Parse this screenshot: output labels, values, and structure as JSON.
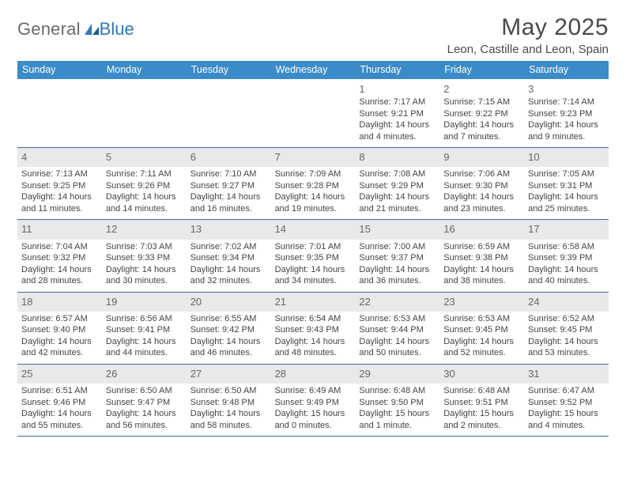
{
  "logo": {
    "general": "General",
    "blue": "Blue"
  },
  "header": {
    "month_title": "May 2025",
    "location": "Leon, Castille and Leon, Spain"
  },
  "colors": {
    "header_bg": "#3b8bc9",
    "header_text": "#ffffff",
    "rule": "#3b6fa2",
    "shade": "#e9e9e9",
    "text": "#444444",
    "logo_gray": "#6a6a6a",
    "logo_blue": "#2f78bb"
  },
  "weekdays": [
    "Sunday",
    "Monday",
    "Tuesday",
    "Wednesday",
    "Thursday",
    "Friday",
    "Saturday"
  ],
  "weeks": [
    [
      {
        "blank": true
      },
      {
        "blank": true
      },
      {
        "blank": true
      },
      {
        "blank": true
      },
      {
        "num": "1",
        "sunrise": "Sunrise: 7:17 AM",
        "sunset": "Sunset: 9:21 PM",
        "daylight": "Daylight: 14 hours and 4 minutes."
      },
      {
        "num": "2",
        "sunrise": "Sunrise: 7:15 AM",
        "sunset": "Sunset: 9:22 PM",
        "daylight": "Daylight: 14 hours and 7 minutes."
      },
      {
        "num": "3",
        "sunrise": "Sunrise: 7:14 AM",
        "sunset": "Sunset: 9:23 PM",
        "daylight": "Daylight: 14 hours and 9 minutes."
      }
    ],
    [
      {
        "num": "4",
        "shaded": true,
        "sunrise": "Sunrise: 7:13 AM",
        "sunset": "Sunset: 9:25 PM",
        "daylight": "Daylight: 14 hours and 11 minutes."
      },
      {
        "num": "5",
        "shaded": true,
        "sunrise": "Sunrise: 7:11 AM",
        "sunset": "Sunset: 9:26 PM",
        "daylight": "Daylight: 14 hours and 14 minutes."
      },
      {
        "num": "6",
        "shaded": true,
        "sunrise": "Sunrise: 7:10 AM",
        "sunset": "Sunset: 9:27 PM",
        "daylight": "Daylight: 14 hours and 16 minutes."
      },
      {
        "num": "7",
        "shaded": true,
        "sunrise": "Sunrise: 7:09 AM",
        "sunset": "Sunset: 9:28 PM",
        "daylight": "Daylight: 14 hours and 19 minutes."
      },
      {
        "num": "8",
        "shaded": true,
        "sunrise": "Sunrise: 7:08 AM",
        "sunset": "Sunset: 9:29 PM",
        "daylight": "Daylight: 14 hours and 21 minutes."
      },
      {
        "num": "9",
        "shaded": true,
        "sunrise": "Sunrise: 7:06 AM",
        "sunset": "Sunset: 9:30 PM",
        "daylight": "Daylight: 14 hours and 23 minutes."
      },
      {
        "num": "10",
        "shaded": true,
        "sunrise": "Sunrise: 7:05 AM",
        "sunset": "Sunset: 9:31 PM",
        "daylight": "Daylight: 14 hours and 25 minutes."
      }
    ],
    [
      {
        "num": "11",
        "shaded": true,
        "sunrise": "Sunrise: 7:04 AM",
        "sunset": "Sunset: 9:32 PM",
        "daylight": "Daylight: 14 hours and 28 minutes."
      },
      {
        "num": "12",
        "shaded": true,
        "sunrise": "Sunrise: 7:03 AM",
        "sunset": "Sunset: 9:33 PM",
        "daylight": "Daylight: 14 hours and 30 minutes."
      },
      {
        "num": "13",
        "shaded": true,
        "sunrise": "Sunrise: 7:02 AM",
        "sunset": "Sunset: 9:34 PM",
        "daylight": "Daylight: 14 hours and 32 minutes."
      },
      {
        "num": "14",
        "shaded": true,
        "sunrise": "Sunrise: 7:01 AM",
        "sunset": "Sunset: 9:35 PM",
        "daylight": "Daylight: 14 hours and 34 minutes."
      },
      {
        "num": "15",
        "shaded": true,
        "sunrise": "Sunrise: 7:00 AM",
        "sunset": "Sunset: 9:37 PM",
        "daylight": "Daylight: 14 hours and 36 minutes."
      },
      {
        "num": "16",
        "shaded": true,
        "sunrise": "Sunrise: 6:59 AM",
        "sunset": "Sunset: 9:38 PM",
        "daylight": "Daylight: 14 hours and 38 minutes."
      },
      {
        "num": "17",
        "shaded": true,
        "sunrise": "Sunrise: 6:58 AM",
        "sunset": "Sunset: 9:39 PM",
        "daylight": "Daylight: 14 hours and 40 minutes."
      }
    ],
    [
      {
        "num": "18",
        "shaded": true,
        "sunrise": "Sunrise: 6:57 AM",
        "sunset": "Sunset: 9:40 PM",
        "daylight": "Daylight: 14 hours and 42 minutes."
      },
      {
        "num": "19",
        "shaded": true,
        "sunrise": "Sunrise: 6:56 AM",
        "sunset": "Sunset: 9:41 PM",
        "daylight": "Daylight: 14 hours and 44 minutes."
      },
      {
        "num": "20",
        "shaded": true,
        "sunrise": "Sunrise: 6:55 AM",
        "sunset": "Sunset: 9:42 PM",
        "daylight": "Daylight: 14 hours and 46 minutes."
      },
      {
        "num": "21",
        "shaded": true,
        "sunrise": "Sunrise: 6:54 AM",
        "sunset": "Sunset: 9:43 PM",
        "daylight": "Daylight: 14 hours and 48 minutes."
      },
      {
        "num": "22",
        "shaded": true,
        "sunrise": "Sunrise: 6:53 AM",
        "sunset": "Sunset: 9:44 PM",
        "daylight": "Daylight: 14 hours and 50 minutes."
      },
      {
        "num": "23",
        "shaded": true,
        "sunrise": "Sunrise: 6:53 AM",
        "sunset": "Sunset: 9:45 PM",
        "daylight": "Daylight: 14 hours and 52 minutes."
      },
      {
        "num": "24",
        "shaded": true,
        "sunrise": "Sunrise: 6:52 AM",
        "sunset": "Sunset: 9:45 PM",
        "daylight": "Daylight: 14 hours and 53 minutes."
      }
    ],
    [
      {
        "num": "25",
        "shaded": true,
        "sunrise": "Sunrise: 6:51 AM",
        "sunset": "Sunset: 9:46 PM",
        "daylight": "Daylight: 14 hours and 55 minutes."
      },
      {
        "num": "26",
        "shaded": true,
        "sunrise": "Sunrise: 6:50 AM",
        "sunset": "Sunset: 9:47 PM",
        "daylight": "Daylight: 14 hours and 56 minutes."
      },
      {
        "num": "27",
        "shaded": true,
        "sunrise": "Sunrise: 6:50 AM",
        "sunset": "Sunset: 9:48 PM",
        "daylight": "Daylight: 14 hours and 58 minutes."
      },
      {
        "num": "28",
        "shaded": true,
        "sunrise": "Sunrise: 6:49 AM",
        "sunset": "Sunset: 9:49 PM",
        "daylight": "Daylight: 15 hours and 0 minutes."
      },
      {
        "num": "29",
        "shaded": true,
        "sunrise": "Sunrise: 6:48 AM",
        "sunset": "Sunset: 9:50 PM",
        "daylight": "Daylight: 15 hours and 1 minute."
      },
      {
        "num": "30",
        "shaded": true,
        "sunrise": "Sunrise: 6:48 AM",
        "sunset": "Sunset: 9:51 PM",
        "daylight": "Daylight: 15 hours and 2 minutes."
      },
      {
        "num": "31",
        "shaded": true,
        "sunrise": "Sunrise: 6:47 AM",
        "sunset": "Sunset: 9:52 PM",
        "daylight": "Daylight: 15 hours and 4 minutes."
      }
    ]
  ]
}
